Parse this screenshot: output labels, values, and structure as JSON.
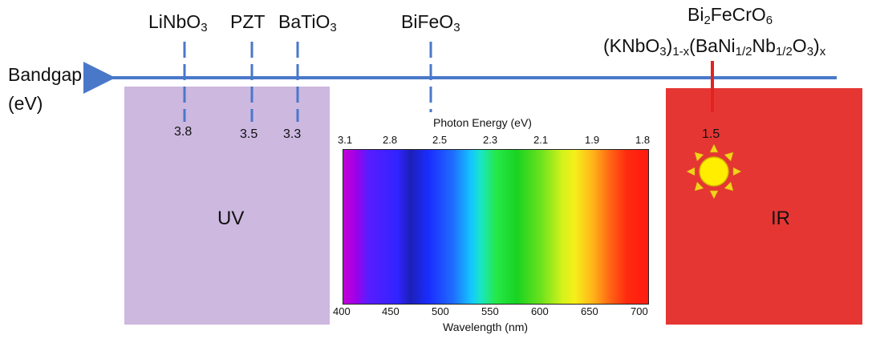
{
  "axis": {
    "title_line1": "Bandgap",
    "title_line2": "(eV)"
  },
  "materials": [
    {
      "name": "LiNbO",
      "sub": "3",
      "bandgap": "3.8"
    },
    {
      "name": "PZT",
      "sub": "",
      "bandgap": "3.5"
    },
    {
      "name": "BaTiO",
      "sub": "3",
      "bandgap": "3.3"
    },
    {
      "name": "BiFeO",
      "sub": "3",
      "bandgap": ""
    }
  ],
  "ir_materials": {
    "line1": {
      "a": "Bi",
      "a_sub": "2",
      "b": "FeCrO",
      "b_sub": "6"
    },
    "line2": {
      "p1": "(KNbO",
      "s1": "3",
      "p2": ")",
      "s2": "1-x",
      "p3": "(BaNi",
      "s3": "1/2",
      "p4": "Nb",
      "s4": "1/2",
      "p5": "O",
      "s5": "3",
      "p6": ")",
      "s6": "x"
    },
    "bandgap": "1.5"
  },
  "regions": {
    "uv": "UV",
    "ir": "IR"
  },
  "spectrum": {
    "top_title": "Photon Energy (eV)",
    "bottom_title": "Wavelength (nm)",
    "energy_ticks": [
      "3.1",
      "2.8",
      "2.5",
      "2.3",
      "2.1",
      "1.9",
      "1.8"
    ],
    "wavelength_ticks": [
      "400",
      "450",
      "500",
      "550",
      "600",
      "650",
      "700"
    ]
  },
  "colors": {
    "axis": "#4a78c9",
    "uv": "#cdb8e0",
    "ir": "#e53633",
    "ir_marker": "#e32222",
    "sun": "#ffee00",
    "sun_rays": "#f3d31c"
  }
}
